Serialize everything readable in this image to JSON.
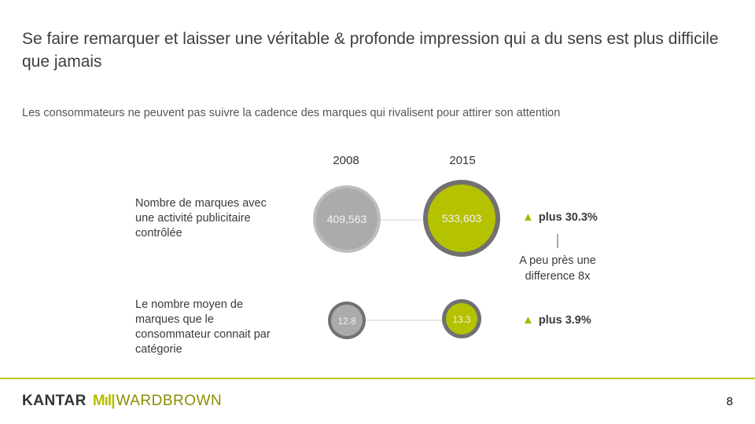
{
  "title": "Se faire remarquer et laisser une véritable & profonde impression qui a du sens est plus difficile que jamais",
  "subtitle": "Les consommateurs ne peuvent pas suivre la cadence des marques qui rivalisent pour attirer son attention",
  "colors": {
    "accent": "#b5c200",
    "grey_fill": "#b8b8b8",
    "grey_ring": "#6f6f6f",
    "footer_line": "#c2c400"
  },
  "chart_data": {
    "type": "bubble-comparison",
    "years": [
      "2008",
      "2015"
    ],
    "rows": [
      {
        "label": "Nombre de marques avec une activité publicitaire contrôlée",
        "values": [
          409563,
          533603
        ],
        "value_labels": [
          "409,563",
          "533,603"
        ],
        "change": "plus 30.3%"
      },
      {
        "label": "Le nombre moyen de marques que le consommateur connait par catégorie",
        "values": [
          12.8,
          13.3
        ],
        "value_labels": [
          "12.8",
          "13.3"
        ],
        "change": "plus 3.9%"
      }
    ],
    "annotation": "A peu près une difference  8x"
  },
  "footer": {
    "brand_kantar": "KANTAR",
    "brand_bars": "Mıl|",
    "brand_wb": "WARDBROWN",
    "page_number": "8"
  }
}
